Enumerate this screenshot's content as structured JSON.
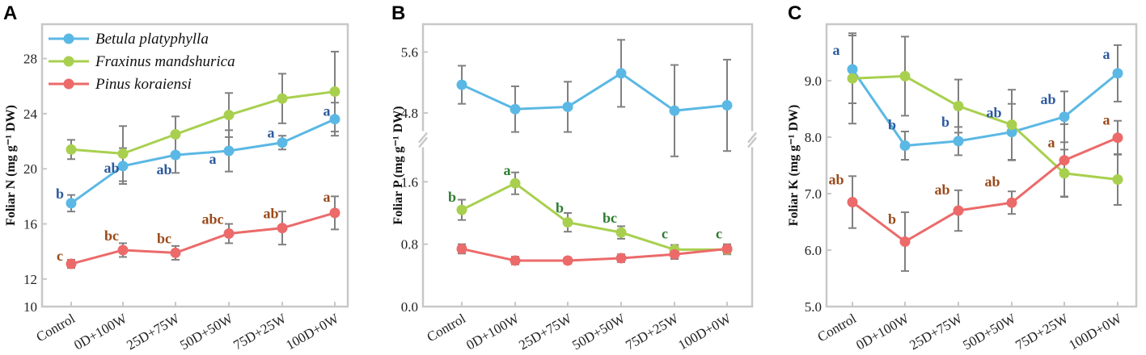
{
  "colors": {
    "betula": "#5bb8e4",
    "fraxinus": "#a8d04e",
    "pinus": "#ec6a6a",
    "frame": "#c8c8c8",
    "errorbar": "#808080",
    "sig_blue": "#2c5a9e",
    "sig_green": "#2e7d32",
    "sig_brown": "#9a4a1a"
  },
  "legend": {
    "betula": "Betula platyphylla",
    "fraxinus": "Fraxinus mandshurica",
    "pinus": "Pinus koraiensi"
  },
  "chart_data": [
    {
      "panel": "A",
      "type": "line",
      "ylabel": "Foliar N (mg g⁻¹ DW)",
      "ylim": [
        10,
        30
      ],
      "yticks": [
        "10",
        "12",
        "16",
        "20",
        "24",
        "28"
      ],
      "categories": [
        "Control",
        "0D+100W",
        "25D+75W",
        "50D+50W",
        "75D+25W",
        "100D+0W"
      ],
      "series": [
        {
          "name": "Betula platyphylla",
          "color_key": "betula",
          "values": [
            17.5,
            20.2,
            21.0,
            21.3,
            21.9,
            23.6
          ],
          "errors": [
            0.6,
            1.3,
            1.3,
            1.5,
            0.5,
            1.2
          ],
          "labels": [
            "b",
            "ab",
            "ab",
            "a",
            "a",
            "a"
          ],
          "label_color": "sig_blue"
        },
        {
          "name": "Fraxinus mandshurica",
          "color_key": "fraxinus",
          "values": [
            21.4,
            21.1,
            22.5,
            23.9,
            25.1,
            25.6
          ],
          "errors": [
            0.7,
            2.0,
            1.3,
            1.6,
            1.8,
            2.9
          ],
          "labels": [
            "",
            "",
            "",
            "",
            "",
            ""
          ],
          "label_color": "sig_green"
        },
        {
          "name": "Pinus koraiensi",
          "color_key": "pinus",
          "values": [
            13.1,
            14.1,
            13.9,
            15.3,
            15.7,
            16.8
          ],
          "errors": [
            0.3,
            0.5,
            0.5,
            0.7,
            1.2,
            1.2
          ],
          "labels": [
            "c",
            "bc",
            "bc",
            "abc",
            "ab",
            "a"
          ],
          "label_color": "sig_brown"
        }
      ]
    },
    {
      "panel": "B",
      "type": "line",
      "ylabel": "Foliar P (mg g⁻¹ DW)",
      "ylim": [
        0,
        6
      ],
      "axis_break": [
        1.9,
        4.3
      ],
      "yticks": [
        "0.0",
        "0.8",
        "1.6",
        "4.8",
        "5.6"
      ],
      "categories": [
        "Control",
        "0D+100W",
        "25D+75W",
        "50D+50W",
        "75D+25W",
        "100D+0W"
      ],
      "series": [
        {
          "name": "Betula platyphylla",
          "color_key": "betula",
          "values": [
            5.17,
            4.85,
            4.88,
            5.32,
            4.83,
            4.9
          ],
          "errors": [
            0.25,
            0.3,
            0.33,
            0.44,
            0.6,
            0.6
          ],
          "labels": [
            "",
            "",
            "",
            "",
            "",
            ""
          ],
          "label_color": "sig_blue"
        },
        {
          "name": "Fraxinus mandshurica",
          "color_key": "fraxinus",
          "values": [
            1.24,
            1.58,
            1.08,
            0.95,
            0.73,
            0.73
          ],
          "errors": [
            0.13,
            0.14,
            0.12,
            0.08,
            0.06,
            0.06
          ],
          "labels": [
            "b",
            "a",
            "b",
            "bc",
            "c",
            "c"
          ],
          "label_color": "sig_green"
        },
        {
          "name": "Pinus koraiensi",
          "color_key": "pinus",
          "values": [
            0.74,
            0.59,
            0.59,
            0.62,
            0.67,
            0.74
          ],
          "errors": [
            0.06,
            0.05,
            0.04,
            0.05,
            0.06,
            0.06
          ],
          "labels": [
            "",
            "",
            "",
            "",
            "",
            ""
          ],
          "label_color": "sig_brown"
        }
      ]
    },
    {
      "panel": "C",
      "type": "line",
      "ylabel": "Foliar K (mg g⁻¹ DW)",
      "ylim": [
        5,
        10
      ],
      "yticks": [
        "5.0",
        "6.0",
        "7.0",
        "8.0",
        "9.0"
      ],
      "categories": [
        "Control",
        "0D+100W",
        "25D+75W",
        "50D+50W",
        "75D+25W",
        "100D+0W"
      ],
      "series": [
        {
          "name": "Betula platyphylla",
          "color_key": "betula",
          "values": [
            9.2,
            7.85,
            7.93,
            8.09,
            8.36,
            9.13
          ],
          "errors": [
            0.6,
            0.25,
            0.25,
            0.5,
            0.45,
            0.5
          ],
          "labels": [
            "a",
            "b",
            "b",
            "ab",
            "ab",
            "a"
          ],
          "label_color": "sig_blue"
        },
        {
          "name": "Fraxinus mandshurica",
          "color_key": "fraxinus",
          "values": [
            9.04,
            9.08,
            8.55,
            8.22,
            7.36,
            7.25
          ],
          "errors": [
            0.8,
            0.7,
            0.47,
            0.62,
            0.42,
            0.45
          ],
          "labels": [
            "",
            "",
            "",
            "",
            "",
            ""
          ],
          "label_color": "sig_green"
        },
        {
          "name": "Pinus koraiensi",
          "color_key": "pinus",
          "values": [
            6.85,
            6.15,
            6.7,
            6.84,
            7.59,
            7.99
          ],
          "errors": [
            0.46,
            0.52,
            0.36,
            0.2,
            0.64,
            0.3
          ],
          "labels": [
            "ab",
            "b",
            "ab",
            "ab",
            "a",
            "a"
          ],
          "label_color": "sig_brown"
        }
      ]
    }
  ]
}
